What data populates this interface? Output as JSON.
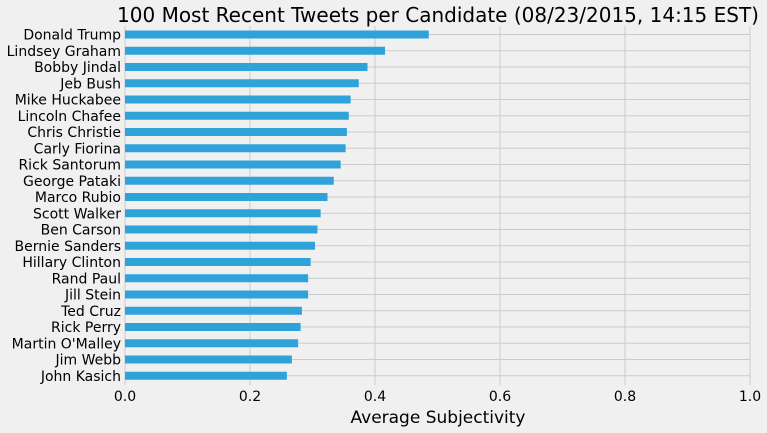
{
  "chart_data": {
    "type": "bar",
    "orientation": "horizontal",
    "title": "100 Most Recent Tweets per Candidate (08/23/2015, 14:15 EST)",
    "xlabel": "Average Subjectivity",
    "ylabel": "",
    "xlim": [
      0.0,
      1.0
    ],
    "xticks": [
      "0.0",
      "0.2",
      "0.4",
      "0.6",
      "0.8",
      "1.0"
    ],
    "grid": true,
    "bar_color": "#30a2da",
    "categories": [
      "Donald Trump",
      "Lindsey Graham",
      "Bobby Jindal",
      "Jeb Bush",
      "Mike Huckabee",
      "Lincoln Chafee",
      "Chris Christie",
      "Carly Fiorina",
      "Rick Santorum",
      "George Pataki",
      "Marco Rubio",
      "Scott Walker",
      "Ben Carson",
      "Bernie Sanders",
      "Hillary Clinton",
      "Rand Paul",
      "Jill Stein",
      "Ted Cruz",
      "Rick Perry",
      "Martin O'Malley",
      "Jim Webb",
      "John Kasich"
    ],
    "values": [
      0.486,
      0.416,
      0.388,
      0.374,
      0.361,
      0.358,
      0.355,
      0.353,
      0.345,
      0.334,
      0.324,
      0.313,
      0.308,
      0.304,
      0.297,
      0.293,
      0.293,
      0.283,
      0.281,
      0.277,
      0.267,
      0.259
    ]
  }
}
